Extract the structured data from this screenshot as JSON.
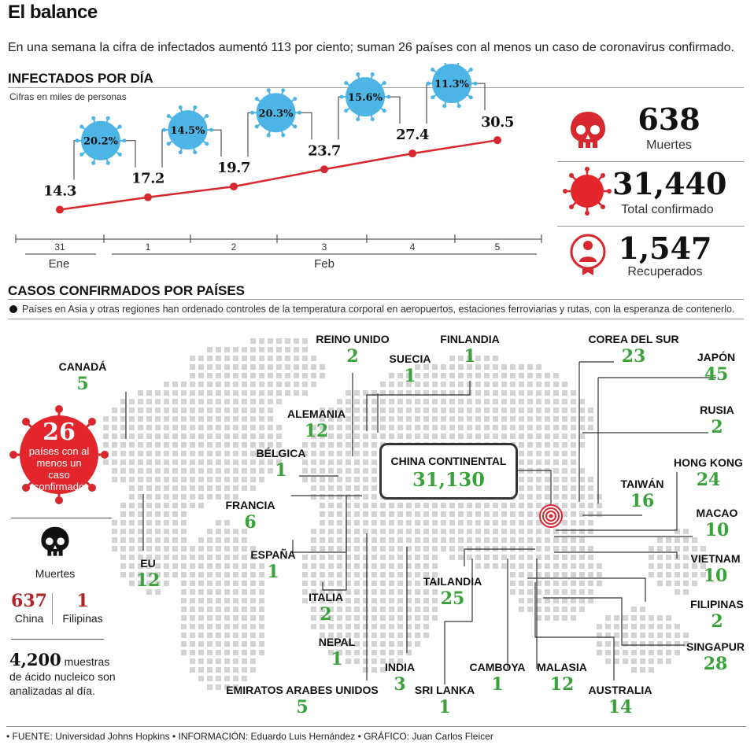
{
  "header": {
    "title": "El balance",
    "subtitle": "En una semana la cifra de infectados aumentó 113 por ciento; suman 26 países con al menos un caso de coronavirus confirmado."
  },
  "chart_data": {
    "type": "line",
    "title": "INFECTADOS POR DÍA",
    "subtitle": "Cifras en miles de personas",
    "x": [
      "31",
      "1",
      "2",
      "3",
      "4",
      "5"
    ],
    "month_labels": [
      "Ene",
      "Feb"
    ],
    "series": [
      {
        "values": [
          14.3,
          17.2,
          19.7,
          23.7,
          27.4,
          30.5
        ]
      }
    ],
    "value_labels": [
      "14.3",
      "17.2",
      "19.7",
      "23.7",
      "27.4",
      "30.5"
    ],
    "growth_labels": [
      "20.2%",
      "14.5%",
      "20.3%",
      "15.6%",
      "11.3%"
    ],
    "ylim": [
      10,
      32
    ],
    "line_color": "#d7282f",
    "badge_color": "#4db4e6"
  },
  "stats": [
    {
      "value": "638",
      "label": "Muertes",
      "icon": "skull-icon"
    },
    {
      "value": "31,440",
      "label": "Total confirmado",
      "icon": "virus-icon"
    },
    {
      "value": "1,547",
      "label": "Recuperados",
      "icon": "recovered-icon"
    }
  ],
  "map_section": {
    "title": "CASOS CONFIRMADOS POR PAÍSES",
    "note": "Países en Asia y otras regiones han ordenado controles de la temperatura corporal en aeropuertos, estaciones ferroviarias y rutas, con la esperanza de contenerlo.",
    "badge": {
      "number": "26",
      "text": "países con al menos un caso confirmado"
    },
    "deaths": {
      "label": "Muertes",
      "china_value": "637",
      "china_label": "China",
      "ph_value": "1",
      "ph_label": "Filipinas"
    },
    "samples": {
      "value": "4,200",
      "text1": "muestras",
      "text2": "de ácido nucleico son",
      "text3": "analizadas al día."
    },
    "china": {
      "name": "CHINA CONTINENTAL",
      "value": "31,130"
    },
    "countries": [
      {
        "name": "CANADÁ",
        "value": "5"
      },
      {
        "name": "EU",
        "value": "12"
      },
      {
        "name": "REINO UNIDO",
        "value": "2"
      },
      {
        "name": "SUECIA",
        "value": "1"
      },
      {
        "name": "FINLANDIA",
        "value": "1"
      },
      {
        "name": "ALEMANIA",
        "value": "12"
      },
      {
        "name": "BÉLGICA",
        "value": "1"
      },
      {
        "name": "FRANCIA",
        "value": "6"
      },
      {
        "name": "ESPAÑA",
        "value": "1"
      },
      {
        "name": "ITALIA",
        "value": "2"
      },
      {
        "name": "NEPAL",
        "value": "1"
      },
      {
        "name": "INDIA",
        "value": "3"
      },
      {
        "name": "EMIRATOS ARABES UNIDOS",
        "value": "5"
      },
      {
        "name": "SRI LANKA",
        "value": "1"
      },
      {
        "name": "TAILANDIA",
        "value": "25"
      },
      {
        "name": "CAMBOYA",
        "value": "1"
      },
      {
        "name": "MALASIA",
        "value": "12"
      },
      {
        "name": "AUSTRALIA",
        "value": "14"
      },
      {
        "name": "COREA DEL SUR",
        "value": "23"
      },
      {
        "name": "JAPÓN",
        "value": "45"
      },
      {
        "name": "RUSIA",
        "value": "2"
      },
      {
        "name": "HONG KONG",
        "value": "24"
      },
      {
        "name": "TAIWÁN",
        "value": "16"
      },
      {
        "name": "MACAO",
        "value": "10"
      },
      {
        "name": "VIETNAM",
        "value": "10"
      },
      {
        "name": "FILIPINAS",
        "value": "2"
      },
      {
        "name": "SINGAPUR",
        "value": "28"
      }
    ]
  },
  "footer": "• FUENTE: Universidad Johns Hopkins • INFORMACIÓN:  Eduardo Luis Hernández • GRÁFICO: Juan Carlos Fleicer"
}
